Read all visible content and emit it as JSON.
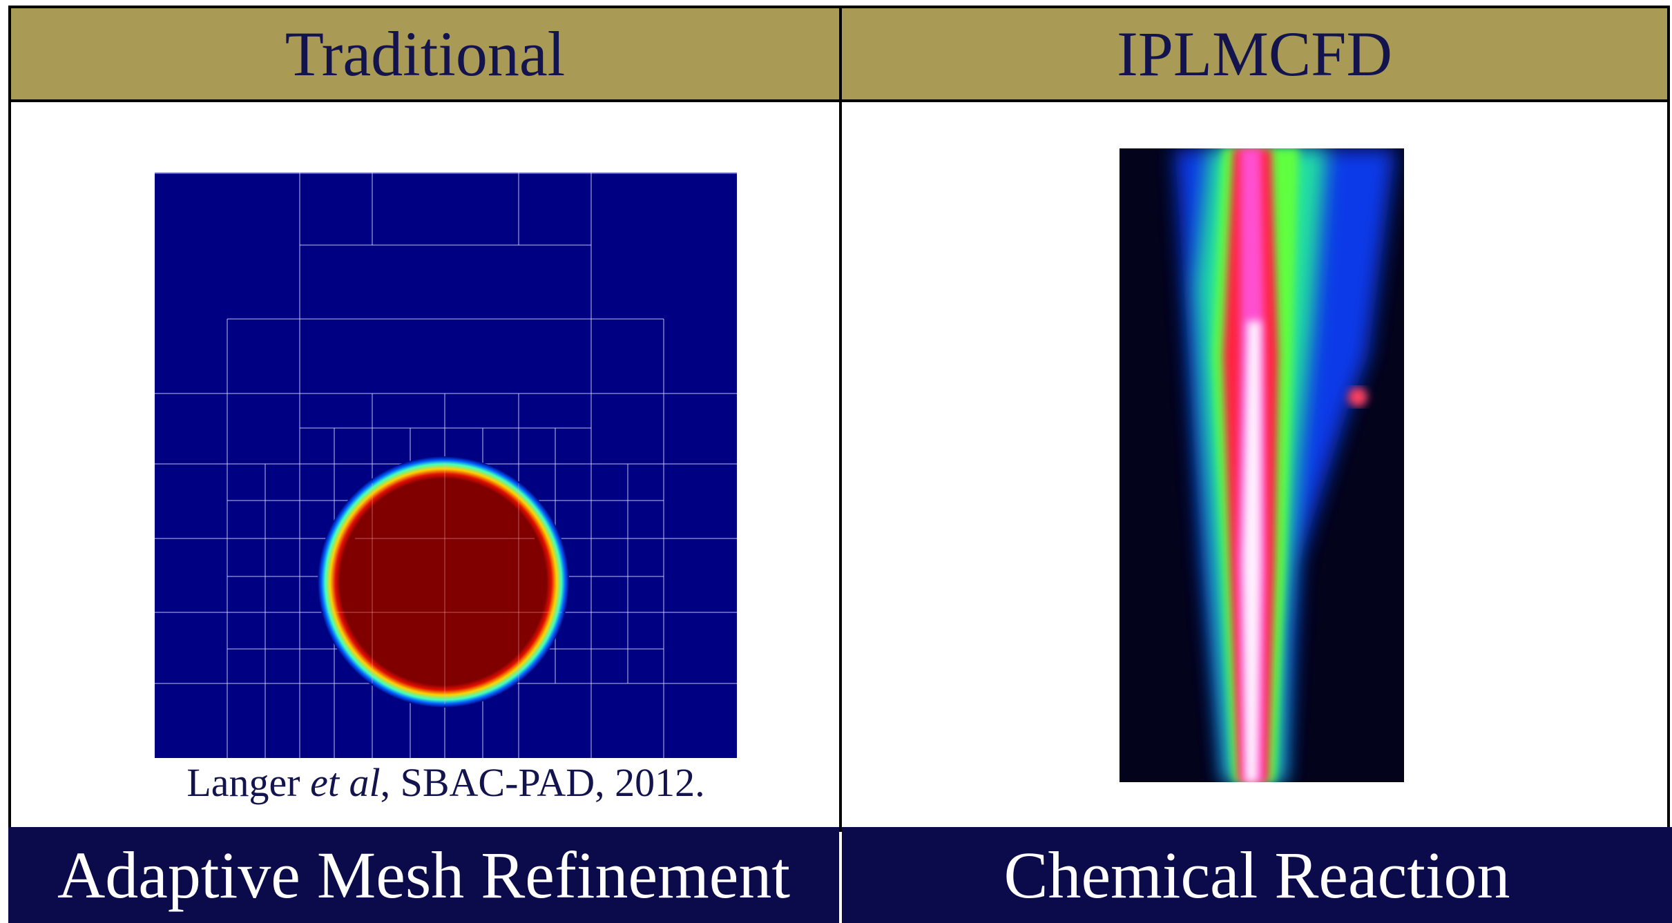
{
  "table": {
    "columns": [
      {
        "header": "Traditional",
        "caption": [
          "Langer ",
          "et al",
          ", SBAC-PAD, 2012."
        ],
        "footer": "Adaptive Mesh Refinement"
      },
      {
        "header": "IPLMCFD",
        "footer": "Chemical Reaction"
      }
    ]
  }
}
